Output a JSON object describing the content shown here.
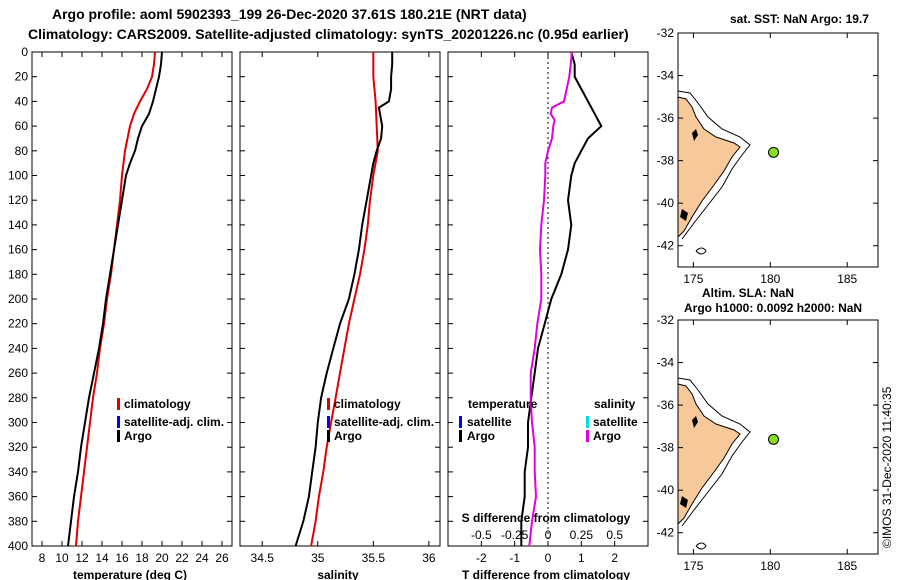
{
  "header": {
    "title_line1": "Argo profile: aoml 5902393_199 26-Dec-2020 37.61S 180.21E (NRT data)",
    "title_line2": "Climatology: CARS2009. Satellite-adjusted climatology: synTS_20201226.nc (0.95d earlier)"
  },
  "map_top": {
    "title": "sat. SST: NaN Argo: 19.7",
    "bottom_label": "Altim. SLA: NaN"
  },
  "map_bottom": {
    "title": "Argo h1000: 0.0092 h2000: NaN"
  },
  "credit": "©IMOS 31-Dec-2020 11:40:35",
  "colors": {
    "climatology": "#e00000",
    "satellite": "#0000ff",
    "argo": "#000000",
    "salinity_argo": "#e000e0",
    "salinity_satellite": "#00e0e0",
    "land": "#f7c89a",
    "float": "#88dd22"
  },
  "chart_data": [
    {
      "type": "line",
      "name": "temperature profile",
      "xlabel": "temperature (deg C)",
      "xlim": [
        7,
        27
      ],
      "ylim": [
        400,
        0
      ],
      "xticks": [
        8,
        10,
        12,
        14,
        16,
        18,
        20,
        22,
        24,
        26
      ],
      "yticks": [
        0,
        20,
        40,
        60,
        80,
        100,
        120,
        140,
        160,
        180,
        200,
        220,
        240,
        260,
        280,
        300,
        320,
        340,
        360,
        380,
        400
      ],
      "legend": [
        "climatology",
        "satellite-adj. clim.",
        "Argo"
      ],
      "series": [
        {
          "name": "climatology",
          "color": "#e00000",
          "depth": [
            0,
            10,
            20,
            30,
            40,
            50,
            60,
            80,
            100,
            120,
            140,
            160,
            180,
            200,
            220,
            240,
            260,
            280,
            300,
            320,
            340,
            360,
            380,
            400
          ],
          "values": [
            19.3,
            19.2,
            19.0,
            18.5,
            17.8,
            17.2,
            16.8,
            16.3,
            16.0,
            15.8,
            15.5,
            15.2,
            14.9,
            14.5,
            14.2,
            13.8,
            13.5,
            13.1,
            12.8,
            12.5,
            12.2,
            11.9,
            11.6,
            11.4
          ]
        },
        {
          "name": "Argo",
          "color": "#000000",
          "depth": [
            0,
            10,
            20,
            30,
            40,
            50,
            60,
            70,
            80,
            90,
            100,
            120,
            140,
            160,
            180,
            200,
            220,
            240,
            260,
            280,
            300,
            320,
            340,
            360,
            380,
            400
          ],
          "values": [
            20.0,
            19.9,
            19.7,
            19.4,
            19.1,
            18.7,
            18.0,
            17.6,
            17.3,
            16.8,
            16.4,
            16.0,
            15.6,
            15.2,
            14.8,
            14.4,
            14.1,
            13.7,
            13.2,
            12.7,
            12.3,
            11.9,
            11.6,
            11.2,
            10.9,
            10.6
          ]
        }
      ]
    },
    {
      "type": "line",
      "name": "salinity profile",
      "xlabel": "salinity",
      "xlim": [
        34.3,
        36.1
      ],
      "ylim": [
        400,
        0
      ],
      "xticks": [
        34.5,
        35,
        35.5,
        36
      ],
      "legend": [
        "climatology",
        "satellite-adj. clim.",
        "Argo"
      ],
      "series": [
        {
          "name": "climatology",
          "color": "#e00000",
          "depth": [
            0,
            20,
            40,
            60,
            80,
            100,
            120,
            140,
            160,
            180,
            200,
            220,
            240,
            260,
            280,
            300,
            320,
            340,
            360,
            380,
            400
          ],
          "values": [
            35.5,
            35.5,
            35.52,
            35.53,
            35.54,
            35.5,
            35.47,
            35.45,
            35.42,
            35.38,
            35.33,
            35.28,
            35.24,
            35.2,
            35.16,
            35.12,
            35.08,
            35.05,
            35.01,
            34.98,
            34.94
          ]
        },
        {
          "name": "Argo",
          "color": "#000000",
          "depth": [
            0,
            10,
            20,
            30,
            40,
            45,
            50,
            60,
            70,
            80,
            90,
            100,
            120,
            140,
            160,
            180,
            200,
            220,
            240,
            260,
            280,
            300,
            320,
            340,
            360,
            380,
            400
          ],
          "values": [
            35.67,
            35.67,
            35.66,
            35.66,
            35.64,
            35.55,
            35.56,
            35.58,
            35.57,
            35.53,
            35.5,
            35.48,
            35.44,
            35.4,
            35.37,
            35.33,
            35.28,
            35.2,
            35.14,
            35.08,
            35.03,
            35.0,
            34.98,
            34.95,
            34.92,
            34.87,
            34.8
          ]
        }
      ]
    },
    {
      "type": "line",
      "name": "difference from climatology",
      "xlabel": "T difference from climatology",
      "x2label": "S difference from climatology",
      "xlim": [
        -3.0,
        3.0
      ],
      "x2lim": [
        -0.75,
        0.75
      ],
      "ylim": [
        400,
        0
      ],
      "xticks": [
        -2,
        -1,
        0,
        1,
        2
      ],
      "x2ticks": [
        -0.5,
        -0.25,
        0,
        0.25,
        0.5
      ],
      "x2tick_labels": [
        "-0.5",
        "-0.25",
        "0",
        "0.25",
        "0.5"
      ],
      "legend_temperature": {
        "heading": "temperature",
        "items": [
          "satellite",
          "Argo"
        ]
      },
      "legend_salinity": {
        "heading": "salinity",
        "items": [
          "satellite",
          "Argo"
        ]
      },
      "series": [
        {
          "name": "T difference (Argo)",
          "color": "#000000",
          "axis": "x",
          "depth": [
            0,
            10,
            20,
            30,
            40,
            50,
            60,
            70,
            80,
            90,
            100,
            120,
            140,
            160,
            180,
            200,
            220,
            240,
            260,
            280,
            300,
            320,
            340,
            360,
            380,
            400
          ],
          "values": [
            0.7,
            0.8,
            0.8,
            1.0,
            1.2,
            1.4,
            1.6,
            1.2,
            1.0,
            0.8,
            0.7,
            0.6,
            0.7,
            0.6,
            0.4,
            0.1,
            -0.1,
            -0.3,
            -0.4,
            -0.5,
            -0.6,
            -0.6,
            -0.7,
            -0.7,
            -0.8,
            -0.8
          ]
        },
        {
          "name": "S difference (Argo)",
          "color": "#e000e0",
          "axis": "x2",
          "depth": [
            0,
            10,
            20,
            30,
            40,
            45,
            50,
            55,
            60,
            70,
            80,
            90,
            100,
            120,
            140,
            160,
            180,
            200,
            220,
            240,
            260,
            280,
            300,
            320,
            340,
            360,
            380,
            400
          ],
          "values": [
            0.18,
            0.17,
            0.16,
            0.14,
            0.12,
            0.03,
            0.02,
            0.05,
            0.04,
            0.03,
            0.0,
            -0.02,
            -0.02,
            -0.03,
            -0.05,
            -0.06,
            -0.05,
            -0.05,
            -0.08,
            -0.1,
            -0.13,
            -0.13,
            -0.12,
            -0.1,
            -0.1,
            -0.09,
            -0.12,
            -0.14
          ]
        }
      ]
    },
    {
      "type": "map",
      "name": "SST map",
      "xlim": [
        174,
        187
      ],
      "ylim": [
        -43,
        -32
      ],
      "xticks": [
        175,
        180,
        185
      ],
      "yticks": [
        -32,
        -34,
        -36,
        -38,
        -40,
        -42
      ],
      "float": {
        "lon": 180.21,
        "lat": -37.61
      }
    },
    {
      "type": "map",
      "name": "SLA map",
      "xlim": [
        174,
        187
      ],
      "ylim": [
        -43,
        -32
      ],
      "xticks": [
        175,
        180,
        185
      ],
      "yticks": [
        -32,
        -34,
        -36,
        -38,
        -40,
        -42
      ],
      "float": {
        "lon": 180.21,
        "lat": -37.61
      }
    }
  ]
}
